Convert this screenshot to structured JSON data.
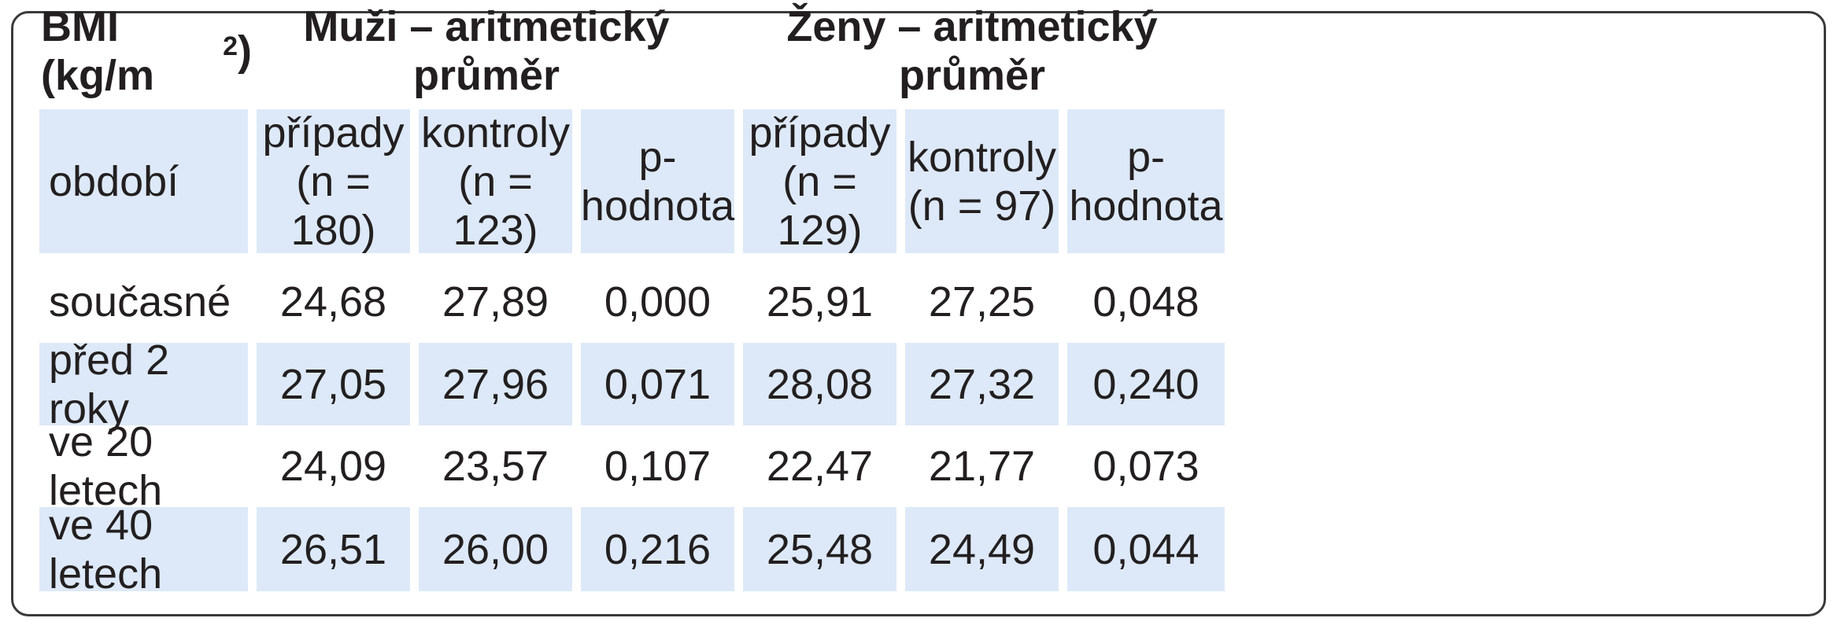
{
  "table": {
    "title_prefix": "BMI (kg/m",
    "title_sup": "2",
    "title_suffix": ")",
    "group_men": "Muži – aritmetický průměr",
    "group_women": "Ženy – aritmetický průměr",
    "period_label": "období",
    "columns": {
      "men_cases": {
        "line1": "případy",
        "line2": "(n = 180)"
      },
      "men_controls": {
        "line1": "kontroly",
        "line2": "(n = 123)"
      },
      "men_p": "p-hodnota",
      "women_cases": {
        "line1": "případy",
        "line2": "(n = 129)"
      },
      "women_controls": {
        "line1": "kontroly",
        "line2": "(n = 97)"
      },
      "women_p": "p-hodnota"
    },
    "rows": [
      {
        "period": "současné",
        "men_cases": "24,68",
        "men_controls": "27,89",
        "men_p": "0,000",
        "women_cases": "25,91",
        "women_controls": "27,25",
        "women_p": "0,048"
      },
      {
        "period": "před 2 roky",
        "men_cases": "27,05",
        "men_controls": "27,96",
        "men_p": "0,071",
        "women_cases": "28,08",
        "women_controls": "27,32",
        "women_p": "0,240"
      },
      {
        "period": "ve 20 letech",
        "men_cases": "24,09",
        "men_controls": "23,57",
        "men_p": "0,107",
        "women_cases": "22,47",
        "women_controls": "21,77",
        "women_p": "0,073"
      },
      {
        "period": "ve 40 letech",
        "men_cases": "26,51",
        "men_controls": "26,00",
        "men_p": "0,216",
        "women_cases": "25,48",
        "women_controls": "24,49",
        "women_p": "0,044"
      }
    ]
  }
}
